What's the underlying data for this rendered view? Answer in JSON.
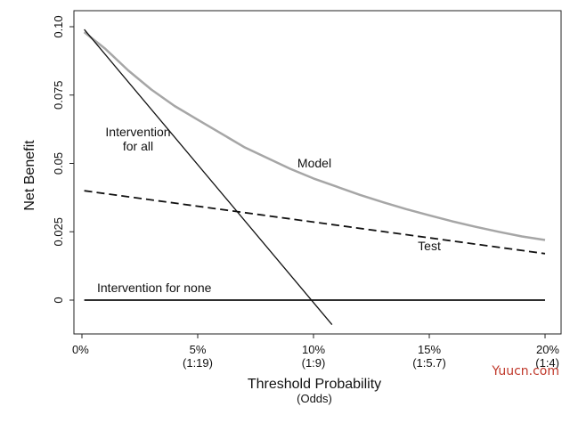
{
  "chart_data": {
    "type": "line",
    "xlabel": "Threshold Probability",
    "xlabel_sub": "(Odds)",
    "ylabel": "Net Benefit",
    "xlim": [
      0,
      20
    ],
    "ylim": [
      -0.012,
      0.101
    ],
    "x_ticks": [
      {
        "value": 0,
        "label": "0%",
        "sublabel": ""
      },
      {
        "value": 5,
        "label": "5%",
        "sublabel": "(1:19)"
      },
      {
        "value": 10,
        "label": "10%",
        "sublabel": "(1:9)"
      },
      {
        "value": 15,
        "label": "15%",
        "sublabel": "(1:5.7)"
      },
      {
        "value": 20,
        "label": "20%",
        "sublabel": "(1:4)"
      }
    ],
    "y_ticks": [
      {
        "value": 0,
        "label": "0"
      },
      {
        "value": 0.025,
        "label": "0.025"
      },
      {
        "value": 0.05,
        "label": "0.05"
      },
      {
        "value": 0.075,
        "label": "0.075"
      },
      {
        "value": 0.1,
        "label": "0.10"
      }
    ],
    "grid": false,
    "series": [
      {
        "name": "Model",
        "label": "Model",
        "color": "#a6a6a6",
        "dash": "solid",
        "x": [
          0.1,
          1,
          2,
          3,
          4,
          5,
          6,
          7,
          8,
          9,
          10,
          11,
          12,
          13,
          14,
          15,
          16,
          17,
          18,
          19,
          20
        ],
        "y": [
          0.098,
          0.092,
          0.084,
          0.077,
          0.071,
          0.066,
          0.061,
          0.056,
          0.052,
          0.048,
          0.0445,
          0.0415,
          0.0385,
          0.0358,
          0.0333,
          0.031,
          0.0288,
          0.0268,
          0.025,
          0.0233,
          0.022
        ]
      },
      {
        "name": "Intervention for all",
        "label": "Intervention\nfor all",
        "color": "#111111",
        "dash": "solid",
        "x": [
          0.1,
          10.8
        ],
        "y": [
          0.099,
          -0.009
        ]
      },
      {
        "name": "Test",
        "label": "Test",
        "color": "#111111",
        "dash": "dashed",
        "x": [
          0.1,
          20
        ],
        "y": [
          0.04,
          0.017
        ]
      },
      {
        "name": "Intervention for none",
        "label": "Intervention for none",
        "color": "#111111",
        "dash": "solid",
        "x": [
          0.1,
          20
        ],
        "y": [
          0,
          0
        ]
      }
    ]
  },
  "watermark": "Yuucn.com"
}
